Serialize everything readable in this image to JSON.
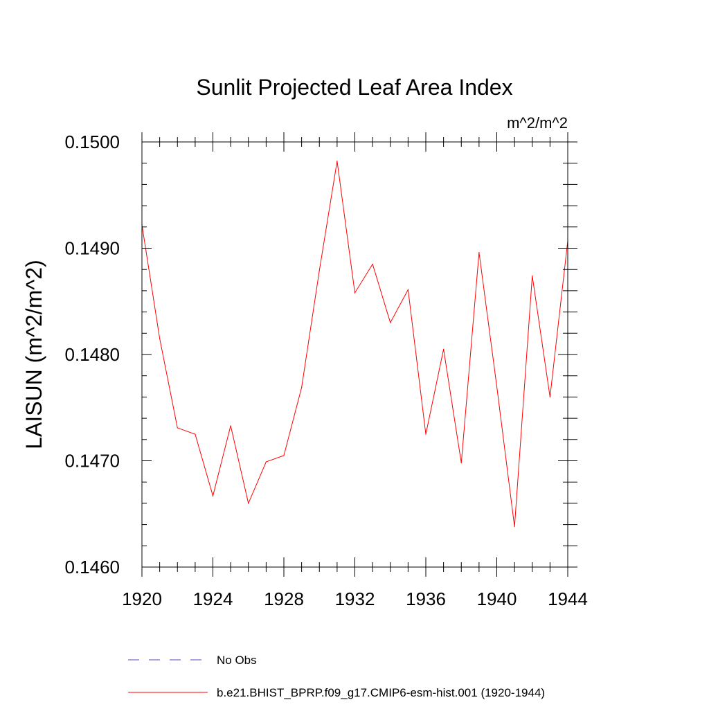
{
  "chart_data": {
    "type": "line",
    "title": "Sunlit Projected Leaf Area Index",
    "units_label": "m^2/m^2",
    "ylabel": "LAISUN  (m^2/m^2)",
    "xlabel": "",
    "xlim": [
      1920,
      1944
    ],
    "ylim": [
      0.146,
      0.15
    ],
    "x_ticks": [
      1920,
      1924,
      1928,
      1932,
      1936,
      1940,
      1944
    ],
    "x_tick_labels": [
      "1920",
      "1924",
      "1928",
      "1932",
      "1936",
      "1940",
      "1944"
    ],
    "y_ticks": [
      0.146,
      0.147,
      0.148,
      0.149,
      0.15
    ],
    "y_tick_labels": [
      "0.1460",
      "0.1470",
      "0.1480",
      "0.1490",
      "0.1500"
    ],
    "grid": false,
    "legend_position": "bottom",
    "series": [
      {
        "name": "No Obs",
        "color": "#4b4bd0",
        "dash": "dashed",
        "x": [],
        "values": []
      },
      {
        "name": "b.e21.BHIST_BPRP.f09_g17.CMIP6-esm-hist.001 (1920-1944)",
        "color": "#ff0000",
        "dash": "solid",
        "x": [
          1920,
          1921,
          1922,
          1923,
          1924,
          1925,
          1926,
          1927,
          1928,
          1929,
          1930,
          1931,
          1932,
          1933,
          1934,
          1935,
          1936,
          1937,
          1938,
          1939,
          1940,
          1941,
          1942,
          1943,
          1944
        ],
        "values": [
          0.14922,
          0.14815,
          0.14731,
          0.14725,
          0.14667,
          0.14733,
          0.1466,
          0.14699,
          0.14705,
          0.14769,
          0.14879,
          0.14982,
          0.14858,
          0.14885,
          0.1483,
          0.14861,
          0.14725,
          0.14805,
          0.14698,
          0.14896,
          0.1477,
          0.14638,
          0.14874,
          0.1476,
          0.14907
        ]
      }
    ]
  }
}
